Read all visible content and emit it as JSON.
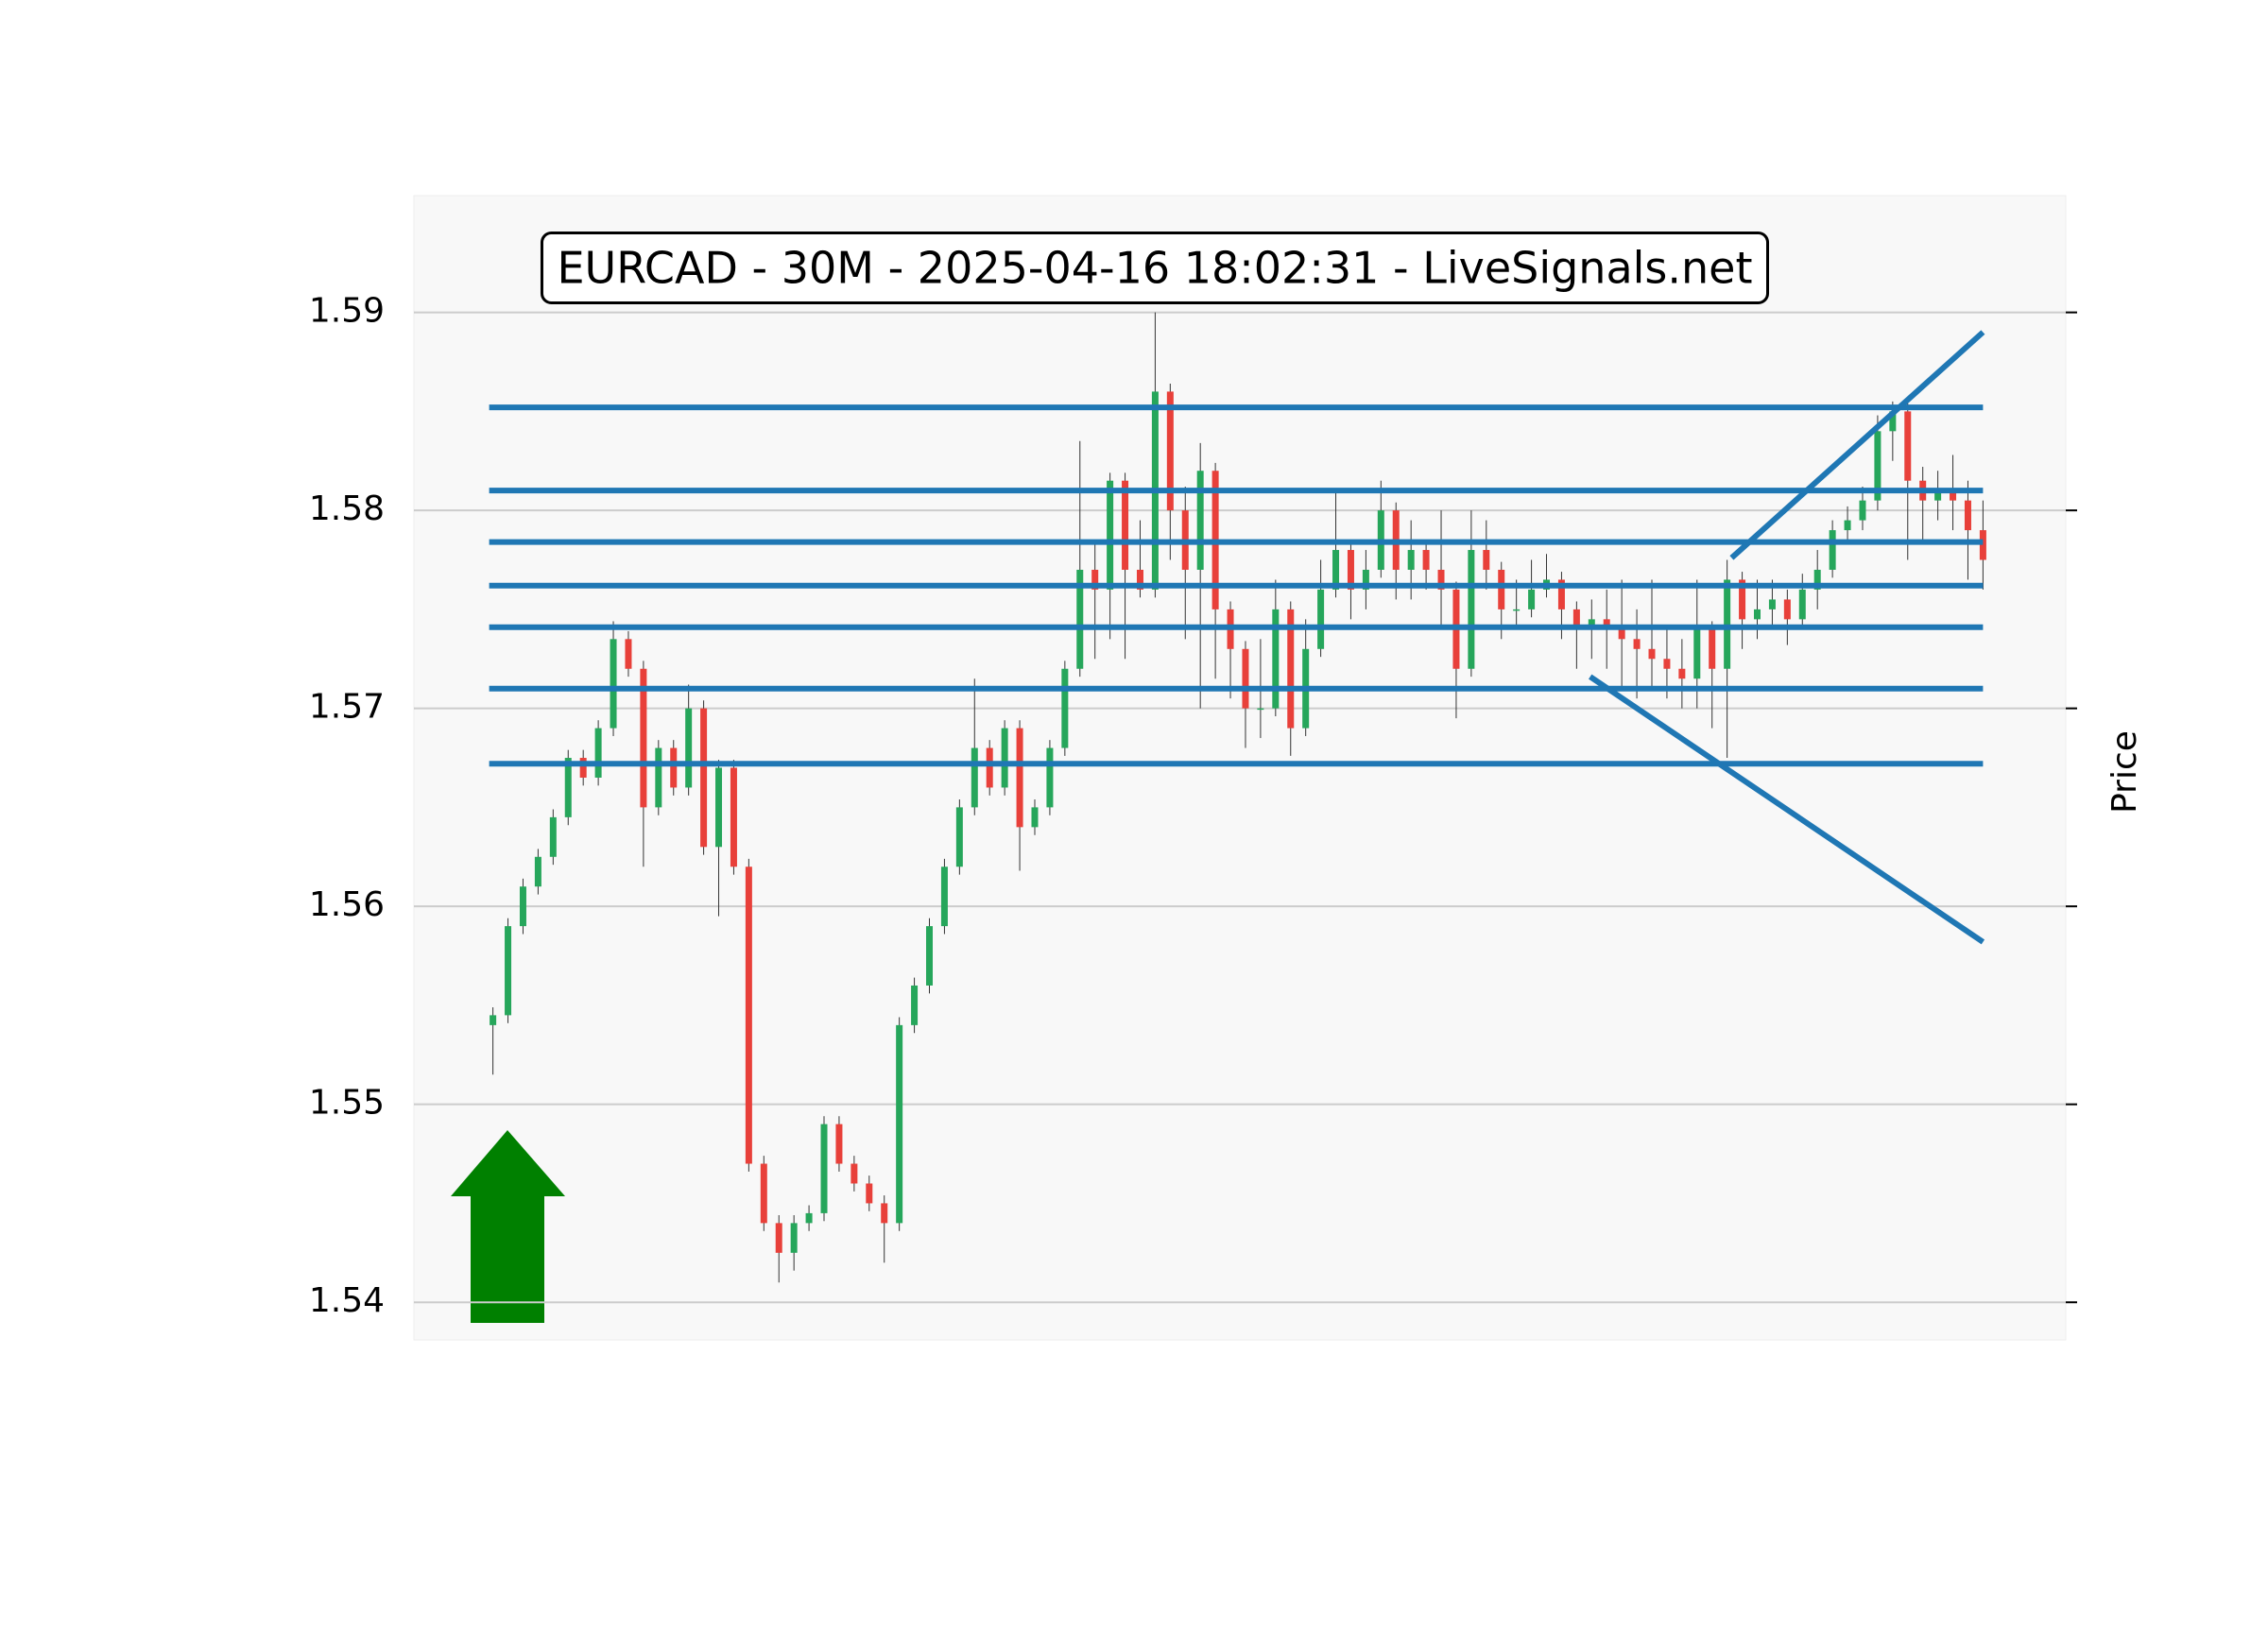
{
  "chart_data": {
    "type": "candlestick",
    "title": "EURCAD - 30M - 2025-04-16 18:02:31 - LiveSignals.net",
    "y_label": "Price",
    "xlim": [
      -5.25,
      104.5
    ],
    "ylim": [
      1.5381,
      1.5959
    ],
    "yticks": [
      1.54,
      1.55,
      1.56,
      1.57,
      1.58,
      1.59
    ],
    "grid": true,
    "up_color": "#26a65b",
    "down_color": "#e8403a",
    "open": [
      1.554,
      1.5545,
      1.559,
      1.561,
      1.5625,
      1.5645,
      1.5675,
      1.5665,
      1.569,
      1.5735,
      1.572,
      1.565,
      1.568,
      1.566,
      1.57,
      1.563,
      1.567,
      1.562,
      1.547,
      1.544,
      1.5425,
      1.544,
      1.5445,
      1.549,
      1.547,
      1.546,
      1.545,
      1.544,
      1.554,
      1.556,
      1.559,
      1.562,
      1.565,
      1.568,
      1.566,
      1.569,
      1.564,
      1.565,
      1.568,
      1.572,
      1.577,
      1.576,
      1.5815,
      1.577,
      1.576,
      1.586,
      1.58,
      1.577,
      1.582,
      1.575,
      1.573,
      1.57,
      1.57,
      1.575,
      1.569,
      1.573,
      1.576,
      1.578,
      1.576,
      1.577,
      1.58,
      1.577,
      1.578,
      1.577,
      1.576,
      1.572,
      1.578,
      1.577,
      1.575,
      1.575,
      1.576,
      1.5765,
      1.575,
      1.574,
      1.5745,
      1.574,
      1.5735,
      1.573,
      1.5725,
      1.572,
      1.5715,
      1.574,
      1.572,
      1.5765,
      1.5745,
      1.575,
      1.5755,
      1.5745,
      1.576,
      1.577,
      1.579,
      1.5795,
      1.5805,
      1.584,
      1.585,
      1.5815,
      1.5805,
      1.581,
      1.5805,
      1.579
    ],
    "high": [
      1.5549,
      1.5594,
      1.5614,
      1.5629,
      1.5649,
      1.5679,
      1.5679,
      1.5694,
      1.5744,
      1.5739,
      1.5724,
      1.5684,
      1.5684,
      1.5712,
      1.5704,
      1.5674,
      1.5674,
      1.5624,
      1.5474,
      1.5444,
      1.5444,
      1.5449,
      1.5494,
      1.5494,
      1.5474,
      1.5464,
      1.5454,
      1.5544,
      1.5564,
      1.5594,
      1.5624,
      1.5654,
      1.5715,
      1.5684,
      1.5694,
      1.5694,
      1.5654,
      1.5684,
      1.5724,
      1.5835,
      1.5785,
      1.5819,
      1.5819,
      1.5795,
      1.59,
      1.5864,
      1.5812,
      1.5834,
      1.5824,
      1.5754,
      1.5734,
      1.5735,
      1.5765,
      1.5754,
      1.5745,
      1.5775,
      1.581,
      1.5784,
      1.578,
      1.5815,
      1.5804,
      1.5795,
      1.5784,
      1.58,
      1.5764,
      1.58,
      1.5795,
      1.5774,
      1.5765,
      1.5775,
      1.5778,
      1.5769,
      1.5754,
      1.5755,
      1.576,
      1.5765,
      1.575,
      1.5765,
      1.574,
      1.5735,
      1.5765,
      1.5744,
      1.5775,
      1.5769,
      1.5765,
      1.5765,
      1.576,
      1.5768,
      1.578,
      1.5795,
      1.5802,
      1.5812,
      1.5848,
      1.5855,
      1.5854,
      1.5822,
      1.582,
      1.5828,
      1.5815,
      1.5805
    ],
    "low": [
      1.5515,
      1.5541,
      1.5586,
      1.5606,
      1.5621,
      1.5641,
      1.5661,
      1.5661,
      1.5686,
      1.5716,
      1.562,
      1.5646,
      1.5656,
      1.5656,
      1.5626,
      1.5595,
      1.5616,
      1.5466,
      1.5436,
      1.541,
      1.5416,
      1.5436,
      1.5441,
      1.5466,
      1.5456,
      1.5446,
      1.542,
      1.5436,
      1.5536,
      1.5556,
      1.5586,
      1.5616,
      1.5646,
      1.5656,
      1.5656,
      1.5618,
      1.5636,
      1.5646,
      1.5676,
      1.5716,
      1.5725,
      1.5735,
      1.5725,
      1.5756,
      1.5756,
      1.5775,
      1.5735,
      1.57,
      1.5715,
      1.5705,
      1.568,
      1.5685,
      1.5696,
      1.5676,
      1.5686,
      1.5726,
      1.5756,
      1.5745,
      1.575,
      1.5766,
      1.5755,
      1.5755,
      1.576,
      1.574,
      1.5695,
      1.5716,
      1.576,
      1.5735,
      1.574,
      1.5746,
      1.5756,
      1.5735,
      1.572,
      1.5725,
      1.572,
      1.571,
      1.5705,
      1.571,
      1.5705,
      1.57,
      1.57,
      1.569,
      1.5675,
      1.573,
      1.5735,
      1.574,
      1.5732,
      1.574,
      1.575,
      1.5766,
      1.5785,
      1.579,
      1.58,
      1.5825,
      1.5775,
      1.5785,
      1.5795,
      1.579,
      1.5765,
      1.576
    ],
    "close": [
      1.5545,
      1.559,
      1.561,
      1.5625,
      1.5645,
      1.5675,
      1.5665,
      1.569,
      1.5735,
      1.572,
      1.565,
      1.568,
      1.566,
      1.57,
      1.563,
      1.567,
      1.562,
      1.547,
      1.544,
      1.5425,
      1.544,
      1.5445,
      1.549,
      1.547,
      1.546,
      1.545,
      1.544,
      1.554,
      1.556,
      1.559,
      1.562,
      1.565,
      1.568,
      1.566,
      1.569,
      1.564,
      1.565,
      1.568,
      1.572,
      1.577,
      1.576,
      1.5815,
      1.577,
      1.576,
      1.586,
      1.58,
      1.577,
      1.582,
      1.575,
      1.573,
      1.57,
      1.57,
      1.575,
      1.569,
      1.573,
      1.576,
      1.578,
      1.576,
      1.577,
      1.58,
      1.577,
      1.578,
      1.577,
      1.576,
      1.572,
      1.578,
      1.577,
      1.575,
      1.575,
      1.576,
      1.5765,
      1.575,
      1.574,
      1.5745,
      1.574,
      1.5735,
      1.573,
      1.5725,
      1.572,
      1.5715,
      1.574,
      1.572,
      1.5765,
      1.5745,
      1.575,
      1.5755,
      1.5745,
      1.576,
      1.577,
      1.579,
      1.5795,
      1.5805,
      1.584,
      1.585,
      1.5815,
      1.5805,
      1.581,
      1.5805,
      1.579,
      1.5775
    ],
    "levels": [
      1.5852,
      1.581,
      1.5784,
      1.5762,
      1.5741,
      1.571,
      1.5672
    ],
    "line_color": "#1f77b4",
    "trendlines": [
      {
        "x": [
          82.3,
          99
        ],
        "y": [
          1.5776,
          1.589
        ]
      },
      {
        "x": [
          72.9,
          99
        ],
        "y": [
          1.5716,
          1.5582
        ]
      }
    ]
  }
}
